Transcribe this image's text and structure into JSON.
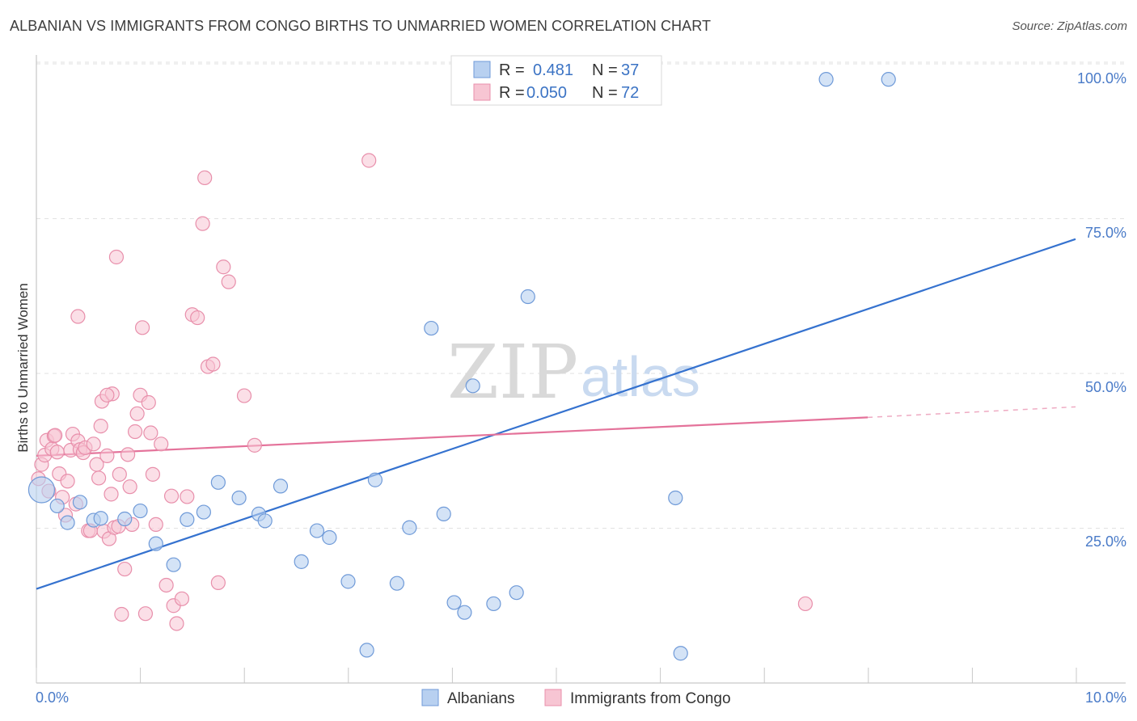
{
  "title": "ALBANIAN VS IMMIGRANTS FROM CONGO BIRTHS TO UNMARRIED WOMEN CORRELATION CHART",
  "source": "Source: ZipAtlas.com",
  "watermark": {
    "zip": "ZIP",
    "atlas": "atlas"
  },
  "colors": {
    "blue_fill": "#b8d0f0",
    "blue_stroke": "#6f9ad8",
    "blue_line": "#3572cf",
    "pink_fill": "#f7c5d3",
    "pink_stroke": "#e88fab",
    "pink_line": "#e4729a",
    "axis_text": "#4a7bc8"
  },
  "legend": {
    "rows": [
      {
        "r_label": "R =",
        "r_value": "0.481",
        "n_label": "N =",
        "n_value": "37"
      },
      {
        "r_label": "R =",
        "r_value": "0.050",
        "n_label": "N =",
        "n_value": "72"
      }
    ]
  },
  "bottom_legend": [
    "Albanians",
    "Immigrants from Congo"
  ],
  "chart_data": {
    "type": "scatter",
    "title": "ALBANIAN VS IMMIGRANTS FROM CONGO BIRTHS TO UNMARRIED WOMEN CORRELATION CHART",
    "xlabel": "",
    "ylabel": "Births to Unmarried Women",
    "xlim": [
      0,
      10
    ],
    "ylim": [
      0,
      100
    ],
    "x_tick_labels": [
      "0.0%",
      "10.0%"
    ],
    "y_tick_labels": [
      "100.0%",
      "75.0%",
      "50.0%",
      "25.0%"
    ],
    "y_ticks": [
      100,
      75,
      50,
      25
    ],
    "grid": true,
    "series": [
      {
        "name": "Albanians",
        "trend": {
          "x": [
            0,
            10
          ],
          "y": [
            15.2,
            71.7
          ]
        },
        "points": [
          [
            0.05,
            31.2
          ],
          [
            0.2,
            28.6
          ],
          [
            0.42,
            29.2
          ],
          [
            0.55,
            26.3
          ],
          [
            0.62,
            26.6
          ],
          [
            0.85,
            26.5
          ],
          [
            1.0,
            27.8
          ],
          [
            1.15,
            22.5
          ],
          [
            1.32,
            19.1
          ],
          [
            1.45,
            26.4
          ],
          [
            1.61,
            27.6
          ],
          [
            1.75,
            32.4
          ],
          [
            1.95,
            29.9
          ],
          [
            2.14,
            27.3
          ],
          [
            2.2,
            26.2
          ],
          [
            2.35,
            31.8
          ],
          [
            2.55,
            19.6
          ],
          [
            2.7,
            24.6
          ],
          [
            2.82,
            23.5
          ],
          [
            3.0,
            16.4
          ],
          [
            3.18,
            5.3
          ],
          [
            3.26,
            32.8
          ],
          [
            3.47,
            16.1
          ],
          [
            3.59,
            25.1
          ],
          [
            3.92,
            27.3
          ],
          [
            4.02,
            13.0
          ],
          [
            4.12,
            11.4
          ],
          [
            4.2,
            48.0
          ],
          [
            4.4,
            12.8
          ],
          [
            4.62,
            14.6
          ],
          [
            4.73,
            62.4
          ],
          [
            6.15,
            29.9
          ],
          [
            6.2,
            4.8
          ],
          [
            7.6,
            97.5
          ],
          [
            8.2,
            97.5
          ],
          [
            3.8,
            57.3
          ],
          [
            0.3,
            25.9
          ]
        ]
      },
      {
        "name": "Immigrants from Congo",
        "trend": {
          "x": [
            0,
            8.0
          ],
          "y": [
            36.7,
            42.9
          ]
        },
        "trend_dashed": {
          "x": [
            8.0,
            10
          ],
          "y": [
            42.9,
            44.6
          ]
        },
        "points": [
          [
            0.02,
            33.0
          ],
          [
            0.05,
            35.3
          ],
          [
            0.08,
            36.8
          ],
          [
            0.1,
            39.2
          ],
          [
            0.12,
            31.0
          ],
          [
            0.15,
            37.8
          ],
          [
            0.17,
            39.9
          ],
          [
            0.2,
            37.3
          ],
          [
            0.22,
            33.8
          ],
          [
            0.25,
            30.0
          ],
          [
            0.28,
            27.1
          ],
          [
            0.3,
            32.6
          ],
          [
            0.33,
            37.6
          ],
          [
            0.35,
            40.2
          ],
          [
            0.38,
            28.9
          ],
          [
            0.4,
            39.1
          ],
          [
            0.42,
            37.7
          ],
          [
            0.45,
            37.2
          ],
          [
            0.47,
            38.0
          ],
          [
            0.5,
            24.6
          ],
          [
            0.52,
            24.6
          ],
          [
            0.55,
            38.6
          ],
          [
            0.58,
            35.3
          ],
          [
            0.6,
            33.1
          ],
          [
            0.62,
            41.5
          ],
          [
            0.63,
            45.5
          ],
          [
            0.65,
            24.5
          ],
          [
            0.68,
            36.7
          ],
          [
            0.7,
            23.3
          ],
          [
            0.72,
            30.5
          ],
          [
            0.73,
            46.7
          ],
          [
            0.75,
            25.1
          ],
          [
            0.77,
            68.8
          ],
          [
            0.79,
            25.3
          ],
          [
            0.8,
            33.7
          ],
          [
            0.82,
            11.1
          ],
          [
            0.85,
            18.4
          ],
          [
            0.88,
            36.9
          ],
          [
            0.9,
            31.7
          ],
          [
            0.92,
            25.6
          ],
          [
            0.95,
            40.6
          ],
          [
            0.97,
            43.5
          ],
          [
            1.0,
            46.5
          ],
          [
            1.02,
            57.4
          ],
          [
            1.05,
            11.2
          ],
          [
            1.08,
            45.3
          ],
          [
            1.1,
            40.4
          ],
          [
            1.12,
            33.7
          ],
          [
            1.15,
            25.6
          ],
          [
            1.2,
            38.6
          ],
          [
            1.25,
            15.8
          ],
          [
            1.3,
            30.2
          ],
          [
            1.32,
            12.5
          ],
          [
            1.35,
            9.6
          ],
          [
            1.4,
            13.6
          ],
          [
            1.45,
            30.1
          ],
          [
            1.5,
            59.5
          ],
          [
            1.55,
            59.0
          ],
          [
            1.6,
            74.2
          ],
          [
            1.62,
            81.6
          ],
          [
            1.65,
            51.1
          ],
          [
            1.7,
            51.5
          ],
          [
            1.75,
            16.2
          ],
          [
            1.8,
            67.2
          ],
          [
            1.85,
            64.8
          ],
          [
            2.0,
            46.4
          ],
          [
            2.1,
            38.4
          ],
          [
            0.18,
            40.0
          ],
          [
            0.4,
            59.2
          ],
          [
            0.68,
            46.5
          ],
          [
            3.2,
            84.4
          ],
          [
            7.4,
            12.8
          ]
        ]
      }
    ]
  }
}
